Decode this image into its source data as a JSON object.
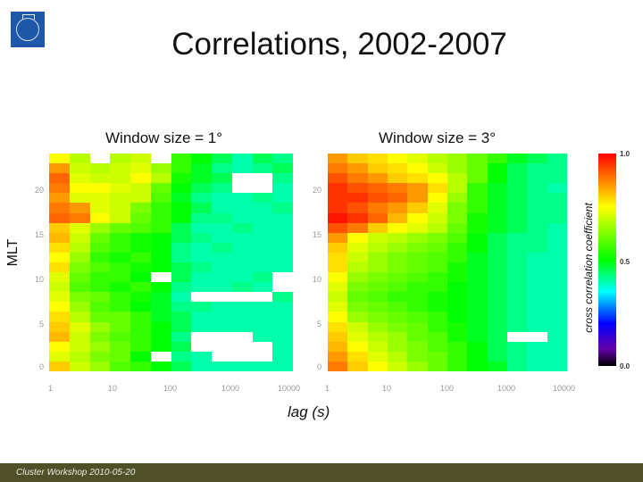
{
  "slide": {
    "title": "Correlations, 2002-2007",
    "footer": "Cluster Workshop 2010-05-20",
    "logo_icon": "kth-logo-icon",
    "xlabel": "lag (s)",
    "ylabel": "MLT"
  },
  "panels": [
    {
      "title": "Window size = 1°",
      "y_ticks": [
        "20",
        "15",
        "10",
        "5",
        "0"
      ],
      "x_ticks": [
        "1",
        "10",
        "100",
        "1000",
        "10000"
      ]
    },
    {
      "title": "Window size = 3°",
      "y_ticks": [
        "20",
        "15",
        "10",
        "5",
        "0"
      ],
      "x_ticks": [
        "1",
        "10",
        "100",
        "1000",
        "10000"
      ]
    }
  ],
  "colorbar": {
    "label": "cross correlation coefficient",
    "ticks": [
      "1.0",
      "0.5",
      "0.0"
    ],
    "colors": [
      "#ff0000",
      "#ffff00",
      "#00ff00",
      "#00ffff",
      "#0000ff",
      "#000000"
    ]
  },
  "chart_data": [
    {
      "type": "heatmap",
      "title": "Window size = 1°",
      "xlabel": "lag (s)",
      "ylabel": "MLT",
      "x_scale": "log",
      "xlim": [
        1,
        10000
      ],
      "ylim": [
        0,
        24
      ],
      "colorbar_label": "cross correlation coefficient",
      "vlim": [
        0.0,
        1.0
      ],
      "null_means": "no data (white)",
      "rows_top_to_bottom": [
        [
          0.75,
          0.68,
          null,
          0.68,
          0.7,
          null,
          0.55,
          0.5,
          0.45,
          0.4,
          0.45,
          0.42
        ],
        [
          0.85,
          0.7,
          0.68,
          0.7,
          0.72,
          0.65,
          0.55,
          0.48,
          0.42,
          0.4,
          0.42,
          0.45
        ],
        [
          0.9,
          0.72,
          0.7,
          0.7,
          0.75,
          0.68,
          0.52,
          0.48,
          0.45,
          null,
          null,
          0.42
        ],
        [
          0.88,
          0.75,
          0.75,
          0.72,
          0.7,
          0.6,
          0.5,
          0.45,
          0.42,
          null,
          null,
          0.4
        ],
        [
          0.85,
          0.72,
          0.72,
          0.7,
          0.7,
          0.58,
          0.48,
          0.42,
          0.4,
          0.4,
          0.42,
          0.4
        ],
        [
          0.88,
          0.85,
          0.72,
          0.7,
          0.62,
          0.55,
          0.5,
          0.45,
          0.4,
          0.4,
          0.4,
          0.42
        ],
        [
          0.9,
          0.88,
          0.75,
          0.7,
          0.6,
          0.55,
          0.5,
          0.42,
          0.42,
          0.4,
          0.4,
          0.4
        ],
        [
          0.8,
          0.72,
          0.65,
          0.6,
          0.58,
          0.55,
          0.45,
          0.4,
          0.4,
          0.42,
          0.4,
          0.4
        ],
        [
          0.82,
          0.7,
          0.6,
          0.55,
          0.52,
          0.5,
          0.45,
          0.42,
          0.4,
          0.4,
          0.4,
          0.4
        ],
        [
          0.78,
          0.68,
          0.58,
          0.55,
          0.52,
          0.5,
          0.42,
          0.4,
          0.42,
          0.4,
          0.4,
          0.4
        ],
        [
          0.75,
          0.65,
          0.55,
          0.52,
          0.55,
          0.5,
          0.42,
          0.4,
          0.4,
          0.4,
          0.4,
          0.4
        ],
        [
          0.78,
          0.62,
          0.58,
          0.55,
          0.52,
          0.5,
          0.45,
          0.42,
          0.4,
          0.4,
          0.4,
          0.4
        ],
        [
          0.72,
          0.6,
          0.55,
          0.55,
          0.5,
          null,
          0.45,
          0.4,
          0.4,
          0.4,
          0.42,
          null
        ],
        [
          0.7,
          0.58,
          0.55,
          0.52,
          0.55,
          0.5,
          0.42,
          0.4,
          0.4,
          0.42,
          0.4,
          null
        ],
        [
          0.72,
          0.62,
          0.6,
          0.55,
          0.52,
          0.48,
          0.4,
          null,
          null,
          null,
          null,
          0.42
        ],
        [
          0.75,
          0.65,
          0.58,
          0.55,
          0.5,
          0.48,
          0.42,
          0.42,
          0.4,
          0.4,
          0.4,
          0.4
        ],
        [
          0.78,
          0.68,
          0.6,
          0.6,
          0.55,
          0.48,
          0.45,
          0.4,
          0.4,
          0.4,
          0.4,
          0.4
        ],
        [
          0.8,
          0.72,
          0.65,
          0.6,
          0.55,
          0.5,
          0.45,
          0.4,
          0.4,
          0.4,
          0.4,
          0.4
        ],
        [
          0.82,
          0.7,
          0.62,
          0.58,
          0.55,
          0.5,
          0.42,
          null,
          null,
          null,
          0.4,
          0.4
        ],
        [
          0.75,
          0.7,
          0.65,
          0.6,
          0.55,
          0.5,
          0.45,
          null,
          null,
          null,
          null,
          0.4
        ],
        [
          0.72,
          0.68,
          0.62,
          0.6,
          0.5,
          null,
          0.42,
          0.4,
          null,
          null,
          null,
          0.4
        ],
        [
          0.8,
          0.7,
          0.65,
          0.58,
          0.55,
          0.5,
          0.45,
          0.4,
          0.4,
          0.4,
          0.4,
          0.4
        ]
      ]
    },
    {
      "type": "heatmap",
      "title": "Window size = 3°",
      "xlabel": "lag (s)",
      "ylabel": "MLT",
      "x_scale": "log",
      "xlim": [
        1,
        10000
      ],
      "ylim": [
        0,
        24
      ],
      "colorbar_label": "cross correlation coefficient",
      "vlim": [
        0.0,
        1.0
      ],
      "null_means": "no data (white)",
      "rows_top_to_bottom": [
        [
          0.85,
          0.8,
          0.78,
          0.75,
          0.72,
          0.68,
          0.65,
          0.6,
          0.55,
          0.48,
          0.45,
          0.42
        ],
        [
          0.88,
          0.85,
          0.8,
          0.78,
          0.75,
          0.7,
          0.65,
          0.6,
          0.5,
          0.45,
          0.42,
          0.42
        ],
        [
          0.92,
          0.88,
          0.85,
          0.8,
          0.78,
          0.75,
          0.68,
          0.6,
          0.5,
          0.45,
          0.42,
          0.42
        ],
        [
          0.95,
          0.92,
          0.9,
          0.88,
          0.85,
          0.78,
          0.68,
          0.55,
          0.48,
          0.45,
          0.42,
          0.4
        ],
        [
          0.95,
          0.95,
          0.92,
          0.9,
          0.85,
          0.75,
          0.65,
          0.55,
          0.48,
          0.45,
          0.42,
          0.42
        ],
        [
          0.95,
          0.92,
          0.88,
          0.85,
          0.8,
          0.72,
          0.62,
          0.55,
          0.48,
          0.45,
          0.42,
          0.42
        ],
        [
          0.98,
          0.95,
          0.9,
          0.82,
          0.75,
          0.7,
          0.62,
          0.52,
          0.48,
          0.45,
          0.42,
          0.42
        ],
        [
          0.92,
          0.88,
          0.8,
          0.75,
          0.72,
          0.68,
          0.6,
          0.52,
          0.48,
          0.45,
          0.42,
          0.4
        ],
        [
          0.85,
          0.75,
          0.7,
          0.68,
          0.65,
          0.62,
          0.58,
          0.5,
          0.45,
          0.42,
          0.42,
          0.4
        ],
        [
          0.8,
          0.72,
          0.68,
          0.65,
          0.62,
          0.6,
          0.55,
          0.5,
          0.45,
          0.42,
          0.42,
          0.4
        ],
        [
          0.78,
          0.7,
          0.65,
          0.62,
          0.6,
          0.58,
          0.55,
          0.48,
          0.45,
          0.42,
          0.4,
          0.4
        ],
        [
          0.78,
          0.68,
          0.65,
          0.62,
          0.6,
          0.58,
          0.52,
          0.48,
          0.45,
          0.42,
          0.4,
          0.4
        ],
        [
          0.75,
          0.65,
          0.62,
          0.6,
          0.58,
          0.55,
          0.52,
          0.48,
          0.45,
          0.42,
          0.4,
          0.4
        ],
        [
          0.72,
          0.62,
          0.6,
          0.58,
          0.55,
          0.55,
          0.5,
          0.48,
          0.45,
          0.42,
          0.4,
          0.4
        ],
        [
          0.7,
          0.6,
          0.58,
          0.55,
          0.55,
          0.52,
          0.5,
          0.48,
          0.45,
          0.42,
          0.4,
          0.4
        ],
        [
          0.72,
          0.62,
          0.6,
          0.58,
          0.55,
          0.52,
          0.5,
          0.48,
          0.45,
          0.42,
          0.4,
          0.4
        ],
        [
          0.75,
          0.65,
          0.62,
          0.6,
          0.58,
          0.55,
          0.5,
          0.48,
          0.45,
          0.42,
          0.4,
          0.4
        ],
        [
          0.78,
          0.7,
          0.65,
          0.62,
          0.6,
          0.55,
          0.52,
          0.48,
          0.45,
          0.42,
          0.4,
          0.4
        ],
        [
          0.8,
          0.72,
          0.68,
          0.65,
          0.6,
          0.58,
          0.52,
          0.48,
          0.45,
          null,
          null,
          0.4
        ],
        [
          0.82,
          0.75,
          0.7,
          0.65,
          0.62,
          0.58,
          0.55,
          0.5,
          0.45,
          0.42,
          0.4,
          0.4
        ],
        [
          0.85,
          0.78,
          0.72,
          0.68,
          0.62,
          0.6,
          0.55,
          0.5,
          0.45,
          0.42,
          0.4,
          0.4
        ],
        [
          0.88,
          0.8,
          0.75,
          0.7,
          0.65,
          0.6,
          0.55,
          0.5,
          0.48,
          0.42,
          0.4,
          0.4
        ]
      ]
    }
  ]
}
